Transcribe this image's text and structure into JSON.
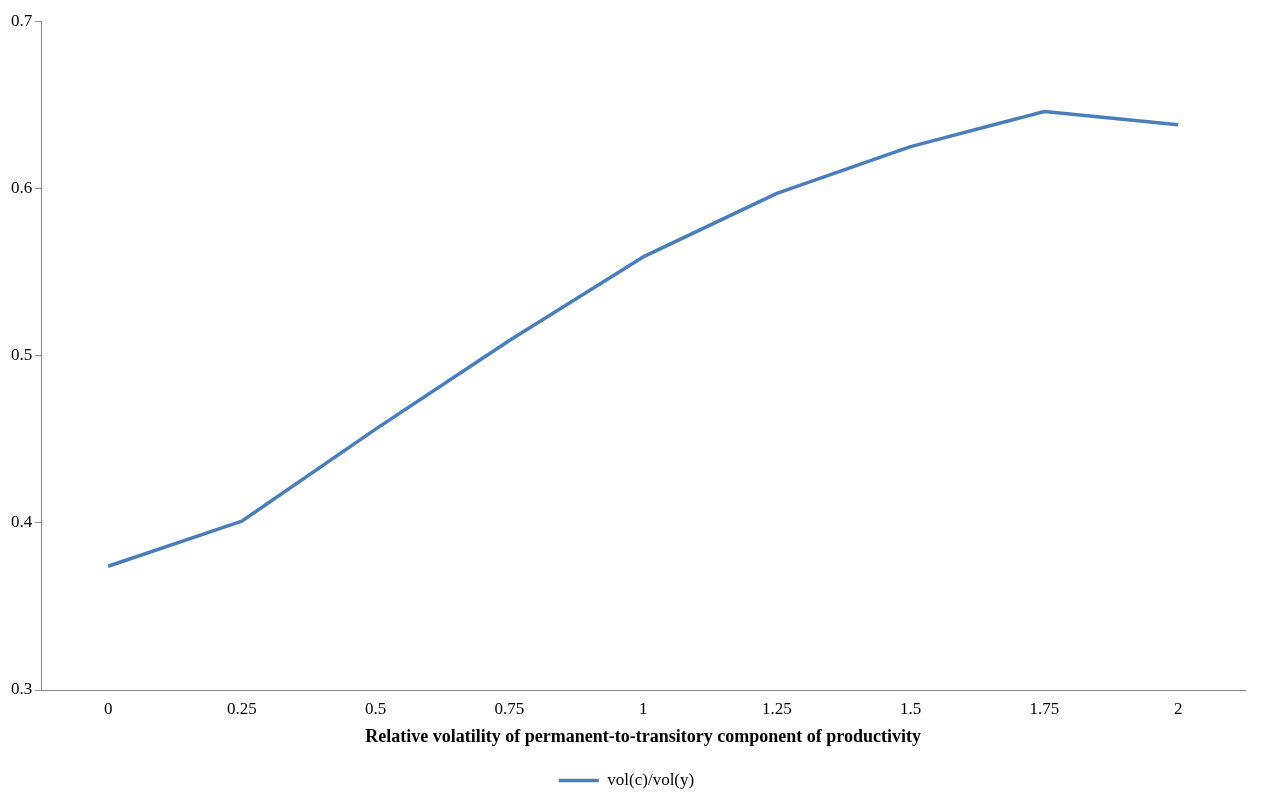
{
  "chart_data": {
    "type": "line",
    "xlabel": "Relative volatility of permanent-to-transitory component of productivity",
    "categories": [
      "0",
      "0.25",
      "0.5",
      "0.75",
      "1",
      "1.25",
      "1.5",
      "1.75",
      "2"
    ],
    "series": [
      {
        "name": "vol(c)/vol(y)",
        "color": "#4a7ebb",
        "values": [
          0.374,
          0.401,
          0.456,
          0.509,
          0.559,
          0.597,
          0.625,
          0.646,
          0.638
        ]
      }
    ],
    "ylim": [
      0.3,
      0.7
    ],
    "yticks": [
      0.3,
      0.4,
      0.5,
      0.6,
      0.7
    ],
    "grid": false,
    "legend": "bottom",
    "marker": "none",
    "line_style": "solid"
  }
}
